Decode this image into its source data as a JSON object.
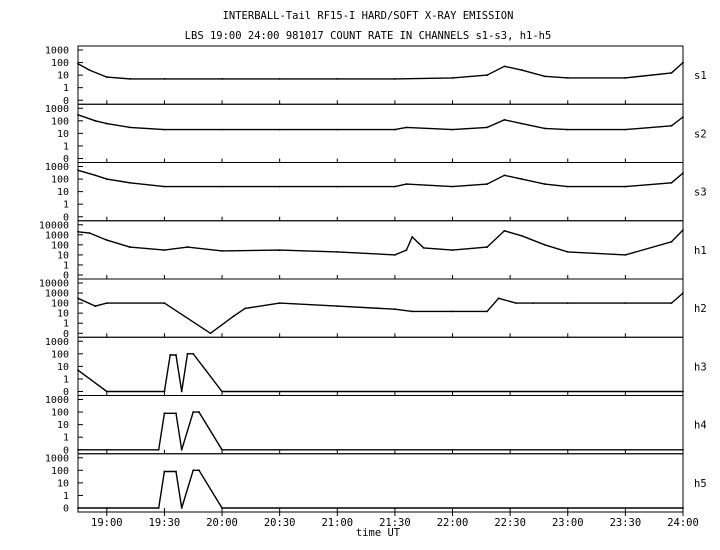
{
  "title_line1": "INTERBALL-Tail RF15-I HARD/SOFT X-RAY EMISSION",
  "title_line2": "LBS 19:00 24:00 981017  COUNT RATE IN CHANNELS s1-s3, h1-h5",
  "x_axis_label": "time UT",
  "chart_data": {
    "type": "line",
    "x_unit": "hours UT",
    "xlim": [
      18.75,
      24.0
    ],
    "x_ticks": [
      19.0,
      19.5,
      20.0,
      20.5,
      21.0,
      21.5,
      22.0,
      22.5,
      23.0,
      23.5,
      24.0
    ],
    "x_tick_labels": [
      "19:00",
      "19:30",
      "20:00",
      "20:30",
      "21:00",
      "21:30",
      "22:00",
      "22:30",
      "23:00",
      "23:30",
      "24:00"
    ],
    "y_scale": "log",
    "panels": [
      {
        "name": "s1",
        "y_tick_labels": [
          "1000",
          "100",
          "10",
          "1",
          "0"
        ],
        "x": [
          18.75,
          18.85,
          19.0,
          19.2,
          19.5,
          20.0,
          20.5,
          21.0,
          21.5,
          22.0,
          22.3,
          22.45,
          22.6,
          22.8,
          23.0,
          23.5,
          23.9,
          24.0
        ],
        "y": [
          80,
          25,
          7,
          5,
          5,
          5,
          5,
          5,
          5,
          6,
          10,
          50,
          25,
          8,
          6,
          6,
          15,
          100
        ]
      },
      {
        "name": "s2",
        "y_tick_labels": [
          "1000",
          "100",
          "10",
          "1",
          "0"
        ],
        "x": [
          18.75,
          18.9,
          19.0,
          19.2,
          19.5,
          20.0,
          20.5,
          21.0,
          21.5,
          21.6,
          22.0,
          22.3,
          22.45,
          22.6,
          22.8,
          23.0,
          23.5,
          23.9,
          24.0
        ],
        "y": [
          300,
          100,
          60,
          30,
          20,
          20,
          20,
          20,
          20,
          30,
          20,
          30,
          120,
          60,
          25,
          20,
          20,
          40,
          200
        ]
      },
      {
        "name": "s3",
        "y_tick_labels": [
          "1000",
          "100",
          "10",
          "1",
          "0"
        ],
        "x": [
          18.75,
          18.9,
          19.0,
          19.2,
          19.5,
          20.0,
          20.5,
          21.0,
          21.5,
          21.6,
          22.0,
          22.3,
          22.45,
          22.6,
          22.8,
          23.0,
          23.5,
          23.9,
          24.0
        ],
        "y": [
          500,
          200,
          100,
          50,
          25,
          25,
          25,
          25,
          25,
          40,
          25,
          40,
          200,
          100,
          40,
          25,
          25,
          50,
          300
        ]
      },
      {
        "name": "h1",
        "y_tick_labels": [
          "10000",
          "1000",
          "100",
          "10",
          "1",
          "0"
        ],
        "x": [
          18.75,
          18.85,
          19.0,
          19.2,
          19.5,
          19.7,
          20.0,
          20.5,
          21.0,
          21.5,
          21.6,
          21.65,
          21.75,
          22.0,
          22.3,
          22.45,
          22.6,
          22.8,
          23.0,
          23.5,
          23.9,
          24.0
        ],
        "y": [
          2000,
          1500,
          300,
          60,
          30,
          60,
          25,
          30,
          20,
          10,
          30,
          600,
          50,
          30,
          60,
          2500,
          800,
          100,
          20,
          10,
          200,
          3000
        ]
      },
      {
        "name": "h2",
        "y_tick_labels": [
          "10000",
          "1000",
          "100",
          "10",
          "1",
          "0"
        ],
        "x": [
          18.75,
          18.9,
          19.0,
          19.5,
          19.9,
          20.1,
          20.2,
          20.5,
          21.0,
          21.5,
          21.65,
          22.0,
          22.3,
          22.4,
          22.55,
          22.7,
          23.0,
          23.5,
          23.9,
          24.0
        ],
        "y": [
          300,
          50,
          100,
          100,
          0,
          5,
          30,
          100,
          50,
          25,
          15,
          15,
          15,
          300,
          100,
          100,
          100,
          100,
          100,
          1000
        ]
      },
      {
        "name": "h3",
        "y_tick_labels": [
          "1000",
          "100",
          "10",
          "1",
          "0"
        ],
        "x": [
          18.75,
          19.0,
          19.5,
          19.55,
          19.6,
          19.65,
          19.7,
          19.75,
          20.0,
          24.0
        ],
        "y": [
          5,
          0,
          0,
          80,
          80,
          0,
          100,
          100,
          0,
          0
        ]
      },
      {
        "name": "h4",
        "y_tick_labels": [
          "1000",
          "100",
          "10",
          "1",
          "0"
        ],
        "x": [
          18.75,
          19.0,
          19.45,
          19.5,
          19.6,
          19.65,
          19.75,
          19.8,
          20.0,
          24.0
        ],
        "y": [
          0,
          0,
          0,
          80,
          80,
          0,
          100,
          100,
          0,
          0
        ]
      },
      {
        "name": "h5",
        "y_tick_labels": [
          "1000",
          "100",
          "10",
          "1",
          "0"
        ],
        "x": [
          18.75,
          19.0,
          19.45,
          19.5,
          19.6,
          19.65,
          19.75,
          19.8,
          20.0,
          24.0
        ],
        "y": [
          0,
          0,
          0,
          80,
          80,
          0,
          100,
          100,
          0,
          0
        ]
      }
    ]
  }
}
